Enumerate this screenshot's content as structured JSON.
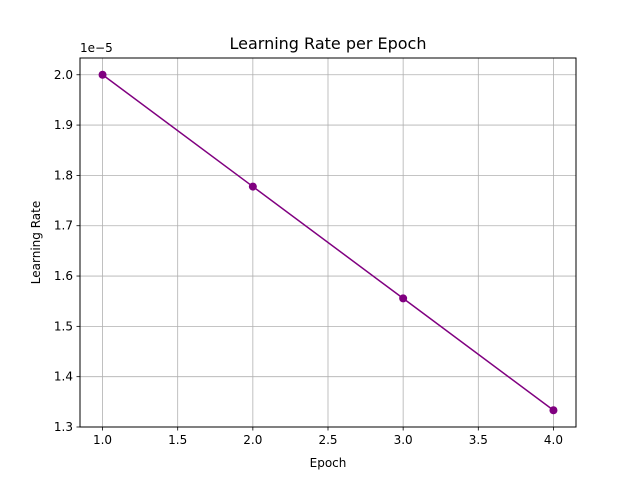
{
  "chart_data": {
    "type": "line",
    "title": "Learning Rate per Epoch",
    "xlabel": "Epoch",
    "ylabel": "Learning Rate",
    "y_offset_label": "1e−5",
    "x": [
      1,
      2,
      3,
      4
    ],
    "series": [
      {
        "values": [
          2.0,
          1.7778,
          1.5556,
          1.3333
        ]
      }
    ],
    "xlim": [
      0.85,
      4.15
    ],
    "ylim": [
      1.3,
      2.0333
    ],
    "xticks": [
      1.0,
      1.5,
      2.0,
      2.5,
      3.0,
      3.5,
      4.0
    ],
    "xtick_labels": [
      "1.0",
      "1.5",
      "2.0",
      "2.5",
      "3.0",
      "3.5",
      "4.0"
    ],
    "yticks": [
      1.3,
      1.4,
      1.5,
      1.6,
      1.7,
      1.8,
      1.9,
      2.0
    ],
    "ytick_labels": [
      "1.3",
      "1.4",
      "1.5",
      "1.6",
      "1.7",
      "1.8",
      "1.9",
      "2.0"
    ],
    "grid": true,
    "marker": "circle",
    "line_color": "#800080",
    "grid_color": "#b0b0b0"
  }
}
